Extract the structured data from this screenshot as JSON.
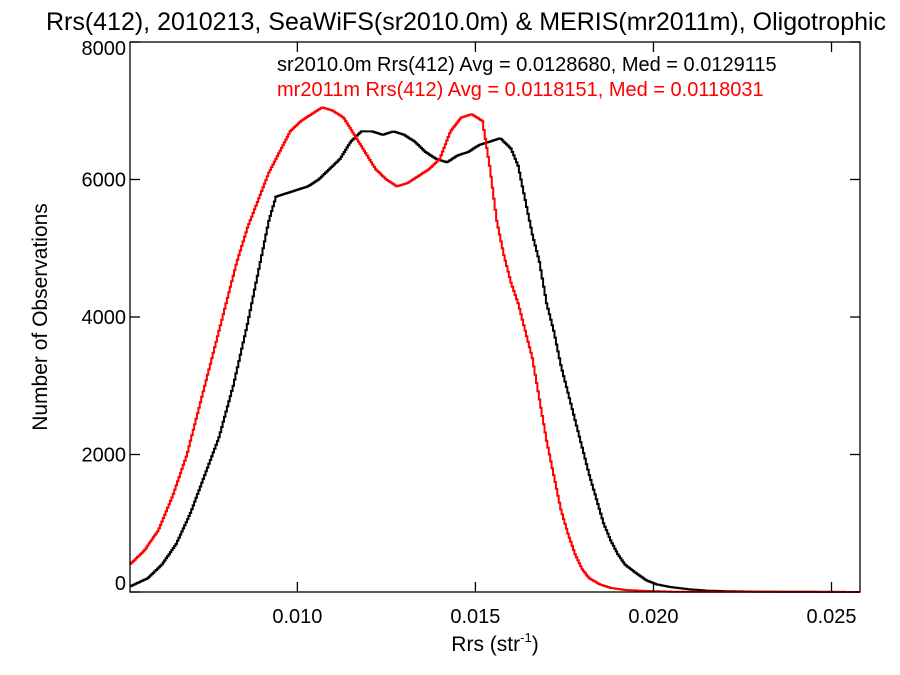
{
  "chart_data": {
    "type": "line",
    "title": "Rrs(412), 2010213, SeaWiFS(sr2010.0m) & MERIS(mr2011m), Oligotrophic",
    "xlabel": "Rrs (str",
    "xlabel_sup": "-1",
    "xlabel_end": ")",
    "ylabel": "Number of Observations",
    "xlim": [
      0.0053,
      0.0258
    ],
    "ylim": [
      0,
      8000
    ],
    "xticks": [
      0.01,
      0.015,
      0.02,
      0.025
    ],
    "xtick_labels": [
      "0.010",
      "0.015",
      "0.020",
      "0.025"
    ],
    "yticks": [
      0,
      2000,
      4000,
      6000,
      8000
    ],
    "ytick_labels": [
      "0",
      "2000",
      "4000",
      "6000",
      "8000"
    ],
    "grid": false,
    "legend_position": "top-right",
    "series": [
      {
        "name": "sr2010.0m Rrs(412) Avg = 0.0128680, Med = 0.0129115",
        "color": "#000000",
        "points": [
          [
            0.0053,
            80
          ],
          [
            0.0058,
            200
          ],
          [
            0.0062,
            400
          ],
          [
            0.0066,
            700
          ],
          [
            0.007,
            1150
          ],
          [
            0.0074,
            1700
          ],
          [
            0.0078,
            2250
          ],
          [
            0.0082,
            3000
          ],
          [
            0.0086,
            3900
          ],
          [
            0.0088,
            4400
          ],
          [
            0.009,
            4900
          ],
          [
            0.0092,
            5400
          ],
          [
            0.0094,
            5750
          ],
          [
            0.0097,
            5800
          ],
          [
            0.01,
            5850
          ],
          [
            0.0103,
            5900
          ],
          [
            0.0106,
            6000
          ],
          [
            0.0109,
            6150
          ],
          [
            0.0112,
            6300
          ],
          [
            0.0115,
            6550
          ],
          [
            0.0118,
            6700
          ],
          [
            0.0121,
            6700
          ],
          [
            0.0124,
            6650
          ],
          [
            0.0127,
            6700
          ],
          [
            0.013,
            6650
          ],
          [
            0.0133,
            6550
          ],
          [
            0.0136,
            6400
          ],
          [
            0.0139,
            6300
          ],
          [
            0.0142,
            6250
          ],
          [
            0.0145,
            6350
          ],
          [
            0.0148,
            6400
          ],
          [
            0.0151,
            6500
          ],
          [
            0.0154,
            6550
          ],
          [
            0.0157,
            6600
          ],
          [
            0.016,
            6450
          ],
          [
            0.0162,
            6200
          ],
          [
            0.0164,
            5700
          ],
          [
            0.0166,
            5200
          ],
          [
            0.0168,
            4800
          ],
          [
            0.017,
            4200
          ],
          [
            0.0172,
            3800
          ],
          [
            0.0174,
            3300
          ],
          [
            0.0176,
            2900
          ],
          [
            0.0178,
            2500
          ],
          [
            0.018,
            2100
          ],
          [
            0.0182,
            1700
          ],
          [
            0.0184,
            1350
          ],
          [
            0.0186,
            1000
          ],
          [
            0.0188,
            750
          ],
          [
            0.019,
            550
          ],
          [
            0.0192,
            400
          ],
          [
            0.0195,
            280
          ],
          [
            0.0198,
            170
          ],
          [
            0.0201,
            110
          ],
          [
            0.0205,
            70
          ],
          [
            0.021,
            40
          ],
          [
            0.0215,
            20
          ],
          [
            0.0222,
            10
          ],
          [
            0.023,
            5
          ],
          [
            0.0258,
            0
          ]
        ]
      },
      {
        "name": "mr2011m Rrs(412) Avg = 0.0118151, Med = 0.0118031",
        "color": "#ff0000",
        "points": [
          [
            0.0053,
            400
          ],
          [
            0.0057,
            600
          ],
          [
            0.0061,
            900
          ],
          [
            0.0065,
            1400
          ],
          [
            0.0069,
            2000
          ],
          [
            0.0073,
            2800
          ],
          [
            0.0077,
            3600
          ],
          [
            0.008,
            4200
          ],
          [
            0.0083,
            4800
          ],
          [
            0.0086,
            5300
          ],
          [
            0.0089,
            5700
          ],
          [
            0.0092,
            6100
          ],
          [
            0.0095,
            6400
          ],
          [
            0.0098,
            6700
          ],
          [
            0.0101,
            6850
          ],
          [
            0.0104,
            6950
          ],
          [
            0.0107,
            7050
          ],
          [
            0.011,
            7000
          ],
          [
            0.0113,
            6900
          ],
          [
            0.0116,
            6650
          ],
          [
            0.0119,
            6400
          ],
          [
            0.0122,
            6150
          ],
          [
            0.0125,
            6000
          ],
          [
            0.0128,
            5900
          ],
          [
            0.0131,
            5950
          ],
          [
            0.0134,
            6050
          ],
          [
            0.0137,
            6150
          ],
          [
            0.014,
            6300
          ],
          [
            0.0143,
            6700
          ],
          [
            0.0146,
            6900
          ],
          [
            0.0149,
            6950
          ],
          [
            0.0152,
            6850
          ],
          [
            0.0154,
            6200
          ],
          [
            0.0156,
            5400
          ],
          [
            0.0158,
            4900
          ],
          [
            0.016,
            4500
          ],
          [
            0.0162,
            4200
          ],
          [
            0.0164,
            3800
          ],
          [
            0.0166,
            3400
          ],
          [
            0.0168,
            2800
          ],
          [
            0.017,
            2200
          ],
          [
            0.0172,
            1700
          ],
          [
            0.0174,
            1200
          ],
          [
            0.0176,
            850
          ],
          [
            0.0178,
            550
          ],
          [
            0.018,
            330
          ],
          [
            0.0182,
            200
          ],
          [
            0.0185,
            110
          ],
          [
            0.0188,
            60
          ],
          [
            0.0192,
            30
          ],
          [
            0.0198,
            15
          ],
          [
            0.0205,
            5
          ],
          [
            0.0258,
            0
          ]
        ]
      }
    ]
  }
}
